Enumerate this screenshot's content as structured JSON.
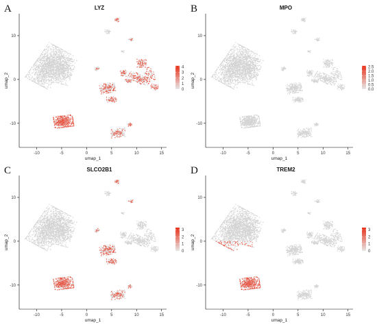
{
  "colors": {
    "background_cells": "#d3d3d3",
    "low": "#e6e6e6",
    "high": "#e8311a"
  },
  "chart_data": [
    {
      "type": "scatter",
      "panel_label": "A",
      "title": "LYZ",
      "xlabel": "umap_1",
      "ylabel": "umap_2",
      "xticks": [
        -10,
        -5,
        0,
        5,
        10,
        15
      ],
      "yticks": [
        -10,
        0,
        10
      ],
      "xlim": [
        -13.5,
        16
      ],
      "ylim": [
        -15.5,
        15
      ],
      "legend": {
        "position": "right",
        "ticks": [
          0,
          1,
          2,
          3,
          4
        ],
        "max": 4.2
      },
      "expression_regions": [
        {
          "region": "lower-left-island",
          "level": 0.85
        },
        {
          "region": "middle-islands",
          "level": 0.35
        },
        {
          "region": "right-branch",
          "level": 0.45
        },
        {
          "region": "small-right-clusters",
          "level": 0.6
        }
      ]
    },
    {
      "type": "scatter",
      "panel_label": "B",
      "title": "MPO",
      "xlabel": "umap_1",
      "ylabel": "umap_2",
      "xticks": [
        -10,
        -5,
        0,
        5,
        10,
        15
      ],
      "yticks": [
        -10,
        0,
        10
      ],
      "xlim": [
        -13.5,
        16
      ],
      "ylim": [
        -15.5,
        15
      ],
      "legend": {
        "position": "right",
        "ticks": [
          0.0,
          0.5,
          1.0,
          1.5,
          2.0,
          2.5
        ],
        "max": 2.6
      },
      "expression_regions": []
    },
    {
      "type": "scatter",
      "panel_label": "C",
      "title": "SLCO2B1",
      "xlabel": "umap_1",
      "ylabel": "umap_2",
      "xticks": [
        -10,
        -5,
        0,
        5,
        10,
        15
      ],
      "yticks": [
        -10,
        0,
        10
      ],
      "xlim": [
        -13.5,
        16
      ],
      "ylim": [
        -15.5,
        15
      ],
      "legend": {
        "position": "right",
        "ticks": [
          0,
          1,
          2,
          3
        ],
        "max": 3.3
      },
      "expression_regions": [
        {
          "region": "lower-left-island",
          "level": 0.6
        },
        {
          "region": "middle-islands",
          "level": 0.4
        }
      ]
    },
    {
      "type": "scatter",
      "panel_label": "D",
      "title": "TREM2",
      "xlabel": "umap_1",
      "ylabel": "umap_2",
      "xticks": [
        -10,
        -5,
        0,
        5,
        10,
        15
      ],
      "yticks": [
        -10,
        0,
        10
      ],
      "xlim": [
        -13.5,
        16
      ],
      "ylim": [
        -15.5,
        15
      ],
      "legend": {
        "position": "right",
        "ticks": [
          0,
          1,
          2,
          3
        ],
        "max": 3.3
      },
      "expression_regions": [
        {
          "region": "lower-left-island",
          "level": 0.7
        },
        {
          "region": "main-cluster-lower",
          "level": 0.4
        }
      ]
    }
  ]
}
